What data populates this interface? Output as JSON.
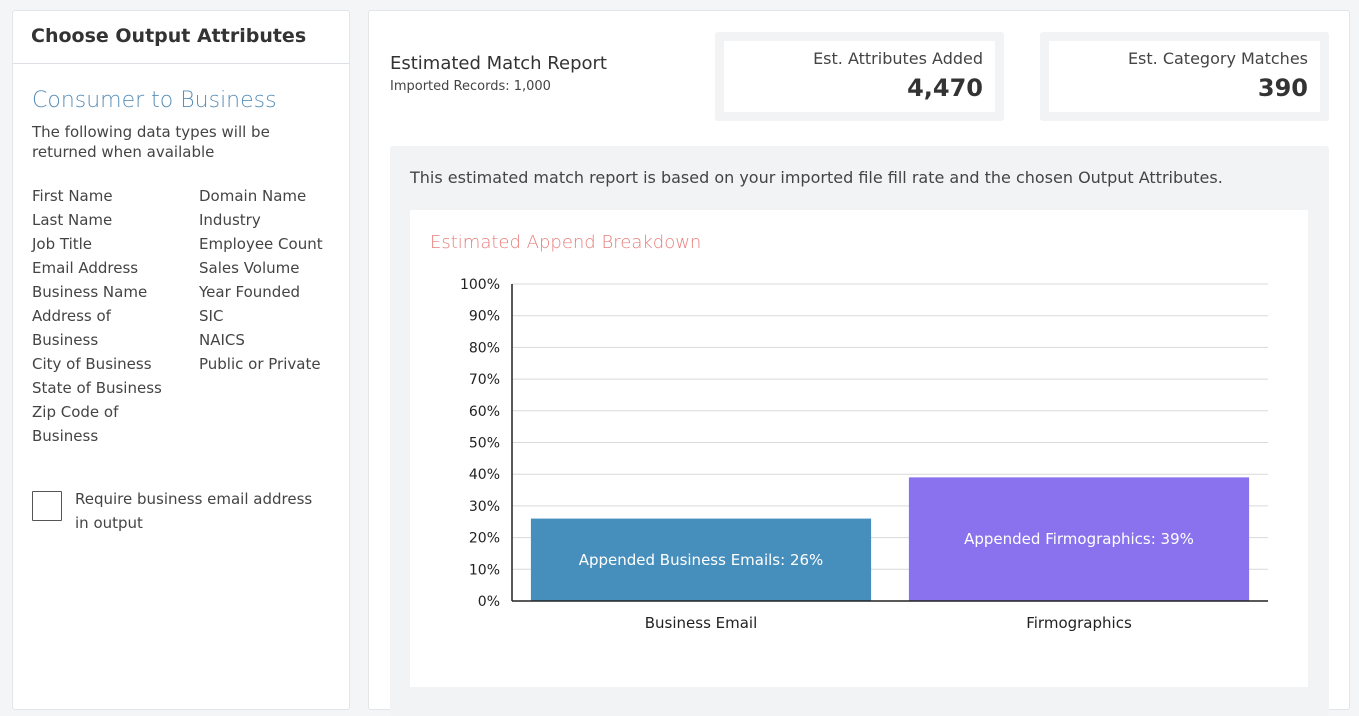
{
  "left": {
    "header": "Choose Output Attributes",
    "section_title": "Consumer to Business",
    "section_desc": "The following data types will be returned when available",
    "attributes_col1": [
      "First Name",
      "Last Name",
      "Job Title",
      "Email Address",
      "Business Name",
      "Address of Business",
      "City of Business",
      "State of Business",
      "Zip Code of Business"
    ],
    "attributes_col2": [
      "Domain Name",
      "Industry",
      "Employee Count",
      "Sales Volume",
      "Year Founded",
      "SIC",
      "NAICS",
      "Public or Private"
    ],
    "require_email_label": "Require business email address in output",
    "require_email_checked": false
  },
  "report": {
    "title": "Estimated Match Report",
    "imported_records": "Imported Records: 1,000",
    "stats": [
      {
        "label": "Est. Attributes Added",
        "value": "4,470"
      },
      {
        "label": "Est. Category Matches",
        "value": "390"
      }
    ],
    "note": "This estimated match report is based on your imported file fill rate and the chosen Output Attributes."
  },
  "chart_data": {
    "type": "bar",
    "title": "Estimated Append Breakdown",
    "categories": [
      "Business Email",
      "Firmographics"
    ],
    "values": [
      26,
      39
    ],
    "bar_labels": [
      "Appended Business Emails: 26%",
      "Appended Firmographics: 39%"
    ],
    "colors": [
      "#468fbd",
      "#8a72ee"
    ],
    "ylim": [
      0,
      100
    ],
    "yticks": [
      0,
      10,
      20,
      30,
      40,
      50,
      60,
      70,
      80,
      90,
      100
    ],
    "ytick_suffix": "%",
    "grid": true,
    "legend": "none"
  }
}
